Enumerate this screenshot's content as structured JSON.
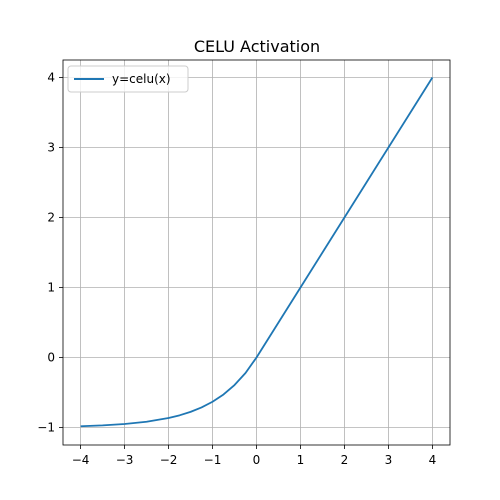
{
  "chart_data": {
    "type": "line",
    "title": "CELU Activation",
    "xlabel": "",
    "ylabel": "",
    "xlim": [
      -4.4,
      4.4
    ],
    "ylim": [
      -1.25,
      4.25
    ],
    "grid": true,
    "legend_position": "upper-left",
    "x_ticks": [
      -4,
      -3,
      -2,
      -1,
      0,
      1,
      2,
      3,
      4
    ],
    "y_ticks": [
      -1,
      0,
      1,
      2,
      3,
      4
    ],
    "x_tick_labels": [
      "−4",
      "−3",
      "−2",
      "−1",
      "0",
      "1",
      "2",
      "3",
      "4"
    ],
    "y_tick_labels": [
      "−1",
      "0",
      "1",
      "2",
      "3",
      "4"
    ],
    "series": [
      {
        "name": "y=celu(x)",
        "color": "#1f77b4",
        "x": [
          -4,
          -3.5,
          -3,
          -2.5,
          -2,
          -1.75,
          -1.5,
          -1.25,
          -1,
          -0.75,
          -0.5,
          -0.25,
          0,
          0.5,
          1,
          1.5,
          2,
          2.5,
          3,
          3.5,
          4
        ],
        "y": [
          -0.982,
          -0.97,
          -0.95,
          -0.918,
          -0.865,
          -0.826,
          -0.777,
          -0.713,
          -0.632,
          -0.528,
          -0.393,
          -0.221,
          0,
          0.5,
          1,
          1.5,
          2,
          2.5,
          3,
          3.5,
          4
        ]
      }
    ]
  }
}
